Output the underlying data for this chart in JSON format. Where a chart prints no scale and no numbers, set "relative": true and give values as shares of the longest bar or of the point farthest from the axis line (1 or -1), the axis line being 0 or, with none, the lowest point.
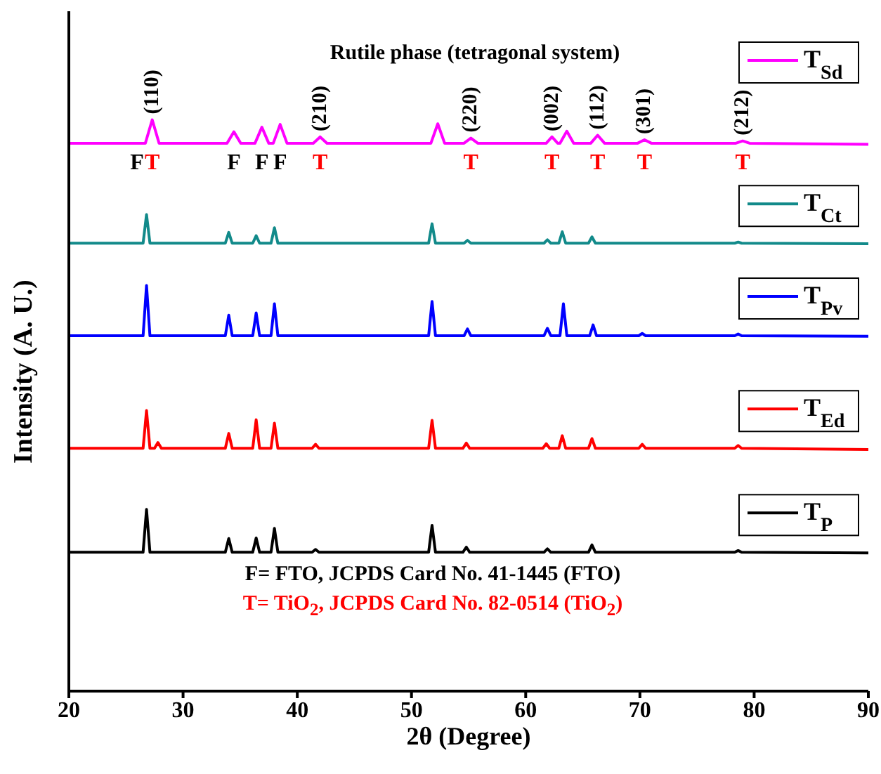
{
  "chart_data": {
    "type": "line",
    "title": "Rutile phase (tetragonal system)",
    "xlabel": "2θ (Degree)",
    "ylabel": "Intensity (A. U.)",
    "relative": true,
    "xlim": [
      20,
      90
    ],
    "xticks": [
      20,
      30,
      40,
      50,
      60,
      70,
      80,
      90
    ],
    "grid": false,
    "legend": "right",
    "marker": "none",
    "line_style": "solid",
    "series": [
      {
        "name": "T$_{Sd}$",
        "color": "#ff00ff",
        "x": [
          20,
          26.7,
          27.3,
          27.9,
          33.85,
          34.45,
          35.05,
          36.3,
          36.9,
          37.5,
          37.9,
          38.5,
          39.1,
          41.4,
          42.0,
          42.6,
          51.7,
          52.3,
          52.9,
          54.6,
          55.2,
          55.8,
          61.8,
          62.3,
          62.8,
          63.0,
          63.6,
          64.2,
          65.7,
          66.3,
          66.9,
          69.8,
          70.4,
          71.0,
          78.4,
          79.0,
          79.6,
          90
        ],
        "values": [
          0.959,
          0.959,
          1.0,
          0.959,
          0.959,
          0.979,
          0.959,
          0.959,
          0.987,
          0.959,
          0.959,
          0.992,
          0.959,
          0.959,
          0.97,
          0.959,
          0.959,
          0.993,
          0.959,
          0.959,
          0.968,
          0.959,
          0.959,
          0.97,
          0.959,
          0.959,
          0.98,
          0.959,
          0.959,
          0.973,
          0.959,
          0.959,
          0.965,
          0.959,
          0.959,
          0.963,
          0.959,
          0.957
        ]
      },
      {
        "name": "T$_{Ct}$",
        "color": "#128a8a",
        "x": [
          20,
          26.5,
          26.8,
          27.1,
          33.7,
          34.0,
          34.3,
          36.1,
          36.4,
          36.7,
          37.7,
          38.0,
          38.3,
          51.5,
          51.8,
          52.1,
          54.6,
          54.9,
          55.2,
          61.6,
          61.9,
          62.2,
          62.9,
          63.2,
          63.5,
          65.5,
          65.8,
          66.1,
          78.3,
          78.6,
          78.9,
          90
        ],
        "values": [
          0.784,
          0.784,
          0.834,
          0.784,
          0.784,
          0.803,
          0.784,
          0.784,
          0.797,
          0.784,
          0.784,
          0.811,
          0.784,
          0.784,
          0.818,
          0.784,
          0.784,
          0.789,
          0.784,
          0.784,
          0.79,
          0.784,
          0.784,
          0.804,
          0.784,
          0.784,
          0.795,
          0.784,
          0.784,
          0.786,
          0.784,
          0.783
        ]
      },
      {
        "name": "T$_{Pv}$",
        "color": "#0000ff",
        "x": [
          20,
          26.5,
          26.8,
          27.1,
          33.7,
          34.0,
          34.3,
          36.1,
          36.4,
          36.7,
          37.7,
          38.0,
          38.3,
          51.5,
          51.8,
          52.1,
          54.6,
          54.9,
          55.2,
          61.6,
          61.9,
          62.2,
          63.0,
          63.3,
          63.6,
          65.6,
          65.9,
          66.2,
          69.9,
          70.2,
          70.5,
          78.3,
          78.6,
          78.9,
          90
        ],
        "values": [
          0.622,
          0.622,
          0.71,
          0.622,
          0.622,
          0.658,
          0.622,
          0.622,
          0.662,
          0.622,
          0.622,
          0.678,
          0.622,
          0.622,
          0.682,
          0.622,
          0.622,
          0.634,
          0.622,
          0.622,
          0.635,
          0.622,
          0.622,
          0.678,
          0.622,
          0.622,
          0.641,
          0.622,
          0.622,
          0.626,
          0.622,
          0.622,
          0.625,
          0.622,
          0.621
        ]
      },
      {
        "name": "T$_{Ed}$",
        "color": "#ff0000",
        "x": [
          20,
          26.5,
          26.8,
          27.1,
          27.5,
          27.8,
          28.1,
          33.7,
          34.0,
          34.3,
          36.1,
          36.4,
          36.7,
          37.7,
          38.0,
          38.3,
          41.3,
          41.6,
          41.9,
          51.5,
          51.8,
          52.1,
          54.5,
          54.8,
          55.1,
          61.5,
          61.8,
          62.1,
          62.9,
          63.2,
          63.5,
          65.5,
          65.8,
          66.1,
          69.9,
          70.2,
          70.5,
          78.3,
          78.6,
          78.9,
          90
        ],
        "values": [
          0.425,
          0.425,
          0.491,
          0.425,
          0.425,
          0.435,
          0.425,
          0.425,
          0.451,
          0.425,
          0.425,
          0.475,
          0.425,
          0.425,
          0.469,
          0.425,
          0.425,
          0.432,
          0.425,
          0.425,
          0.474,
          0.425,
          0.425,
          0.434,
          0.425,
          0.425,
          0.433,
          0.425,
          0.425,
          0.447,
          0.425,
          0.425,
          0.442,
          0.425,
          0.425,
          0.432,
          0.425,
          0.425,
          0.43,
          0.425,
          0.423
        ]
      },
      {
        "name": "T$_{P}$",
        "color": "#000000",
        "x": [
          20,
          26.5,
          26.8,
          27.1,
          33.7,
          34.0,
          34.3,
          36.1,
          36.4,
          36.7,
          37.7,
          38.0,
          38.3,
          41.3,
          41.6,
          41.9,
          51.5,
          51.8,
          52.1,
          54.5,
          54.8,
          55.1,
          61.6,
          61.9,
          62.2,
          65.5,
          65.8,
          66.1,
          78.3,
          78.6,
          78.9,
          90
        ],
        "values": [
          0.243,
          0.243,
          0.318,
          0.243,
          0.243,
          0.267,
          0.243,
          0.243,
          0.268,
          0.243,
          0.243,
          0.285,
          0.243,
          0.243,
          0.248,
          0.243,
          0.243,
          0.29,
          0.243,
          0.243,
          0.252,
          0.243,
          0.243,
          0.249,
          0.243,
          0.243,
          0.256,
          0.243,
          0.243,
          0.246,
          0.243,
          0.242
        ]
      }
    ],
    "annotations": [
      {
        "text": "(110)",
        "x": 27.3,
        "y": 1.0
      },
      {
        "text": "(210)",
        "x": 42.0,
        "y": 0.97
      },
      {
        "text": "(220)",
        "x": 55.2,
        "y": 0.968
      },
      {
        "text": "(002)",
        "x": 62.3,
        "y": 0.97
      },
      {
        "text": "(112)",
        "x": 66.3,
        "y": 0.973
      },
      {
        "text": "(301)",
        "x": 70.4,
        "y": 0.965
      },
      {
        "text": "(212)",
        "x": 79.0,
        "y": 0.963
      },
      {
        "text": "F",
        "x": 26.7,
        "y": 0.959
      },
      {
        "text": "T",
        "x": 27.3,
        "y": 1.0
      },
      {
        "text": "F",
        "x": 34.45,
        "y": 0.979
      },
      {
        "text": "F",
        "x": 36.9,
        "y": 0.987
      },
      {
        "text": "F",
        "x": 38.5,
        "y": 0.992
      },
      {
        "text": "T",
        "x": 42.0,
        "y": 0.97
      },
      {
        "text": "T",
        "x": 55.2,
        "y": 0.968
      },
      {
        "text": "T",
        "x": 62.3,
        "y": 0.97
      },
      {
        "text": "T",
        "x": 66.3,
        "y": 0.973
      },
      {
        "text": "T",
        "x": 70.4,
        "y": 0.965
      },
      {
        "text": "T",
        "x": 79.0,
        "y": 0.963
      },
      "F= FTO, JCPDS Card No. 41-1445 (FTO)",
      "T= TiO$_{2}$, JCPDS Card No. 82-0514 (TiO$_{2}$)"
    ]
  }
}
